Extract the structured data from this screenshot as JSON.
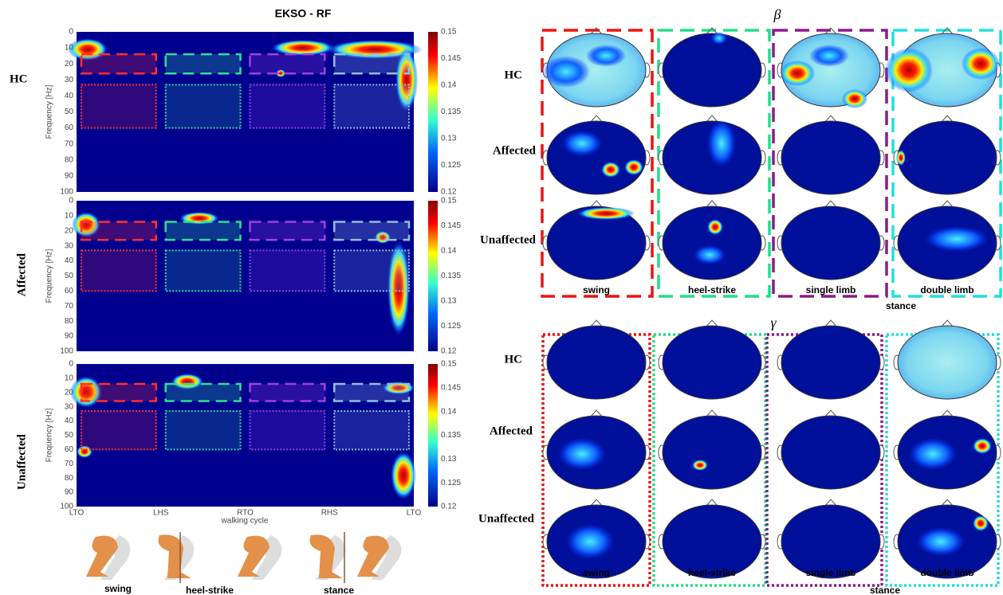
{
  "left": {
    "title": "EKSO - RF",
    "rows": [
      "HC",
      "Affected",
      "Unaffected"
    ],
    "y_axis_label": "Frequency [Hz]",
    "y_ticks": [
      "0",
      "10",
      "20",
      "30",
      "40",
      "50",
      "60",
      "70",
      "80",
      "90",
      "100"
    ],
    "x_ticks": [
      "LTO",
      "LHS",
      "RTO",
      "RHS",
      "LTO"
    ],
    "x_axis_label": "walking cycle",
    "colorbar_ticks": [
      "0.15",
      "0.145",
      "0.14",
      "0.135",
      "0.13",
      "0.125",
      "0.12"
    ],
    "gait_labels": [
      "swing",
      "heel-strike",
      "stance"
    ]
  },
  "beta": {
    "symbol": "β",
    "rows": [
      "HC",
      "Affected",
      "Unaffected"
    ],
    "phases": [
      "swing",
      "heel-strike",
      "single limb",
      "double limb"
    ],
    "group_label": "stance"
  },
  "gamma": {
    "symbol": "γ",
    "rows": [
      "HC",
      "Affected",
      "Unaffected"
    ],
    "phases": [
      "swing",
      "heel-strike",
      "single limb",
      "double limb"
    ],
    "group_label": "stance"
  }
}
